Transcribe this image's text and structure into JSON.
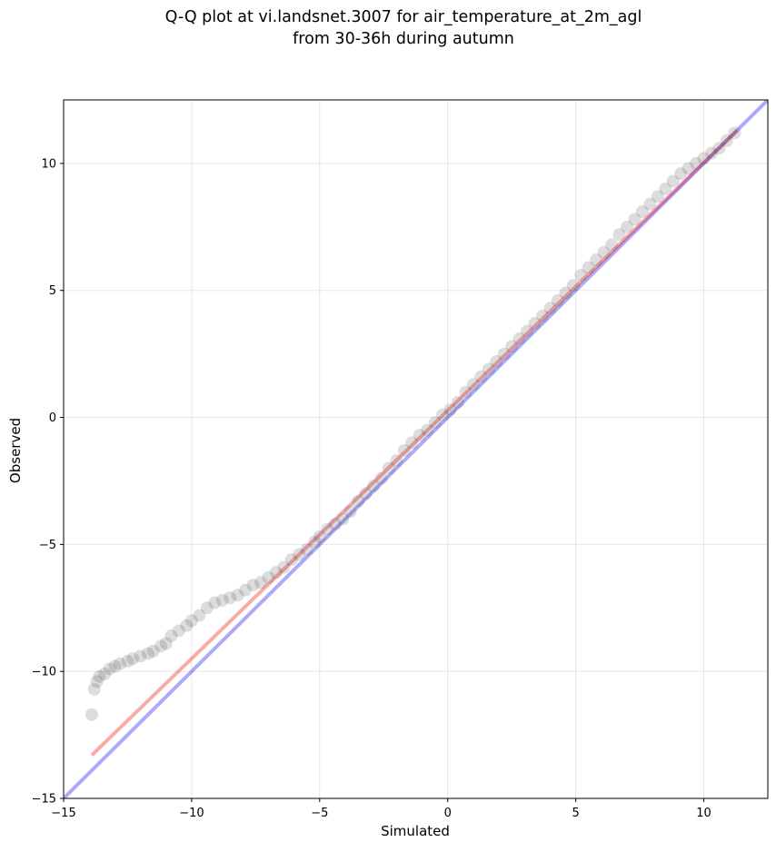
{
  "chart_data": {
    "type": "scatter",
    "title_line1": "Q-Q plot at vi.landsnet.3007 for air_temperature_at_2m_agl",
    "title_line2": "from 30-36h during autumn",
    "xlabel": "Simulated",
    "ylabel": "Observed",
    "xlim": [
      -15,
      12.5
    ],
    "ylim": [
      -15,
      12.5
    ],
    "xticks": [
      -15,
      -10,
      -5,
      0,
      5,
      10
    ],
    "yticks": [
      -15,
      -10,
      -5,
      0,
      5,
      10
    ],
    "xtick_labels": [
      "−15",
      "−10",
      "−5",
      "0",
      "5",
      "10"
    ],
    "ytick_labels": [
      "−15",
      "−10",
      "−5",
      "0",
      "5",
      "10"
    ],
    "grid": true,
    "lines": [
      {
        "role": "identity",
        "color": "#0000ee",
        "opacity": 0.33,
        "x": [
          -15,
          12.5
        ],
        "y": [
          -15,
          12.5
        ]
      },
      {
        "role": "fit",
        "color": "#ee0000",
        "opacity": 0.33,
        "x": [
          -13.9,
          11.3
        ],
        "y": [
          -13.3,
          11.3
        ]
      }
    ],
    "points": {
      "color": "#444444",
      "opacity": 0.18,
      "x": [
        -13.9,
        -13.8,
        -13.7,
        -13.6,
        -13.4,
        -13.2,
        -13.0,
        -12.8,
        -12.5,
        -12.3,
        -12.0,
        -11.7,
        -11.5,
        -11.2,
        -11.0,
        -10.8,
        -10.5,
        -10.2,
        -10.0,
        -9.7,
        -9.4,
        -9.1,
        -8.8,
        -8.5,
        -8.2,
        -7.9,
        -7.6,
        -7.3,
        -7.0,
        -6.7,
        -6.4,
        -6.1,
        -5.8,
        -5.5,
        -5.2,
        -5.0,
        -4.7,
        -4.4,
        -4.1,
        -3.8,
        -3.5,
        -3.2,
        -2.9,
        -2.6,
        -2.3,
        -2.0,
        -1.7,
        -1.4,
        -1.1,
        -0.8,
        -0.5,
        -0.2,
        0.1,
        0.4,
        0.7,
        1.0,
        1.3,
        1.6,
        1.9,
        2.2,
        2.5,
        2.8,
        3.1,
        3.4,
        3.7,
        4.0,
        4.3,
        4.6,
        4.9,
        5.2,
        5.5,
        5.8,
        6.1,
        6.4,
        6.7,
        7.0,
        7.3,
        7.6,
        7.9,
        8.2,
        8.5,
        8.8,
        9.1,
        9.4,
        9.7,
        10.0,
        10.3,
        10.6,
        10.9,
        11.2
      ],
      "y": [
        -11.7,
        -10.7,
        -10.4,
        -10.2,
        -10.1,
        -9.9,
        -9.8,
        -9.7,
        -9.6,
        -9.5,
        -9.4,
        -9.3,
        -9.2,
        -9.0,
        -8.9,
        -8.6,
        -8.4,
        -8.2,
        -8.0,
        -7.8,
        -7.5,
        -7.3,
        -7.2,
        -7.1,
        -7.0,
        -6.8,
        -6.6,
        -6.5,
        -6.3,
        -6.1,
        -5.9,
        -5.6,
        -5.4,
        -5.2,
        -4.9,
        -4.7,
        -4.4,
        -4.2,
        -4.0,
        -3.7,
        -3.3,
        -3.0,
        -2.7,
        -2.4,
        -2.0,
        -1.7,
        -1.3,
        -1.0,
        -0.7,
        -0.5,
        -0.2,
        0.1,
        0.3,
        0.6,
        1.0,
        1.3,
        1.6,
        1.9,
        2.2,
        2.5,
        2.8,
        3.1,
        3.4,
        3.7,
        4.0,
        4.3,
        4.6,
        4.9,
        5.2,
        5.6,
        5.9,
        6.2,
        6.5,
        6.8,
        7.2,
        7.5,
        7.8,
        8.1,
        8.4,
        8.7,
        9.0,
        9.3,
        9.6,
        9.8,
        10.0,
        10.2,
        10.4,
        10.6,
        10.9,
        11.2
      ]
    }
  }
}
